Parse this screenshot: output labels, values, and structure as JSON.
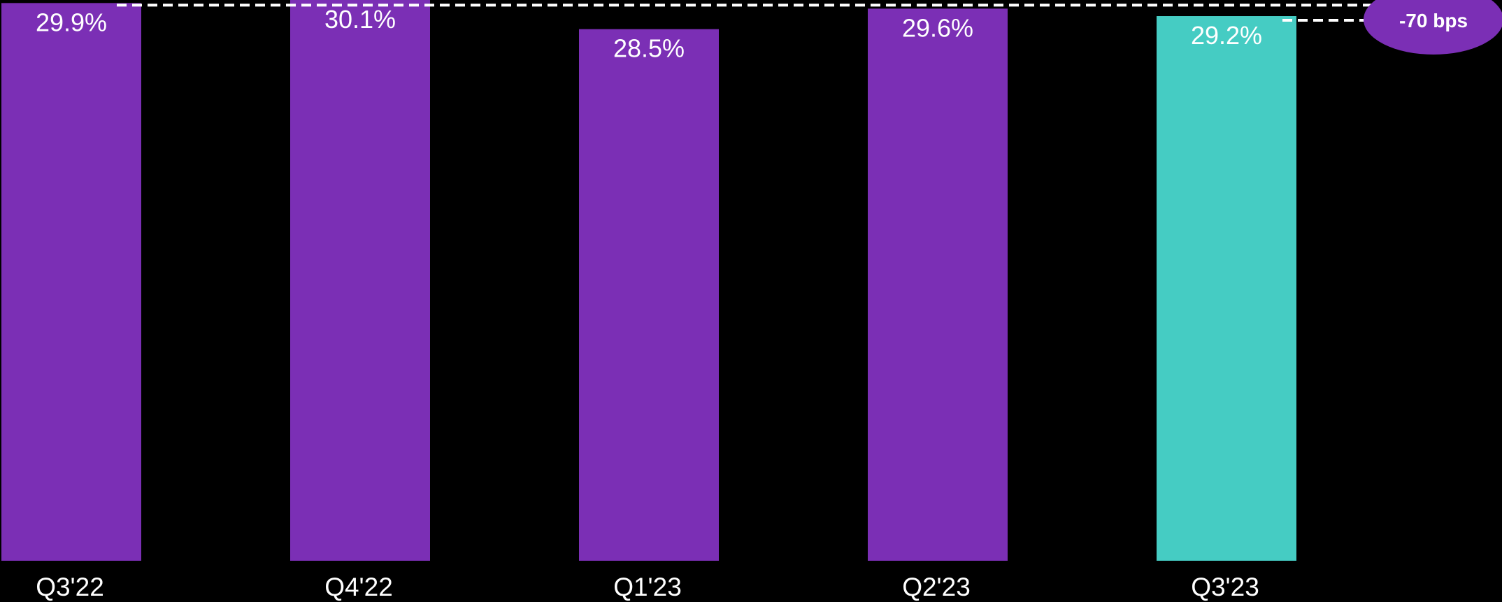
{
  "chart_data": {
    "type": "bar",
    "categories": [
      "Q3'22",
      "Q4'22",
      "Q1'23",
      "Q2'23",
      "Q3'23"
    ],
    "values": [
      29.9,
      30.1,
      28.5,
      29.6,
      29.2
    ],
    "value_labels": [
      "29.9%",
      "30.1%",
      "28.5%",
      "29.6%",
      "29.2%"
    ],
    "bar_colors": [
      "#7B2FB5",
      "#7B2FB5",
      "#7B2FB5",
      "#7B2FB5",
      "#45CCC3"
    ],
    "annotation": {
      "text": "-70 bps",
      "from_category": "Q3'22",
      "to_category": "Q3'23",
      "bubble_color": "#7B2FB5",
      "line_color": "#ffffff"
    },
    "grid": false,
    "legend": "none"
  },
  "colors": {
    "background": "#000000",
    "text": "#ffffff"
  }
}
